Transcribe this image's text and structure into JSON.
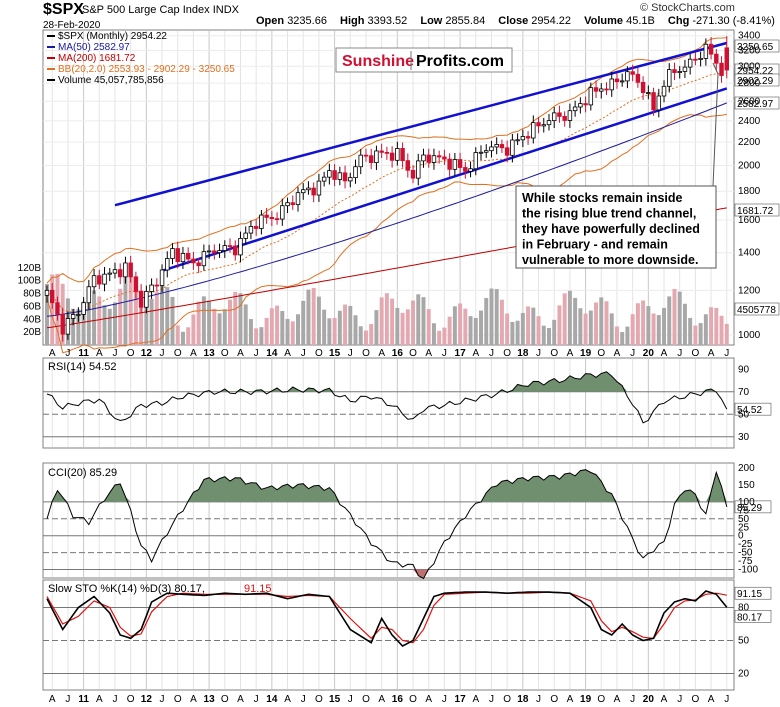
{
  "header": {
    "symbol": "$SPX",
    "name": "S&P 500 Large Cap Index",
    "index_tag": "INDX",
    "date": "28-Feb-2020",
    "open_label": "Open",
    "open": "3235.66",
    "high_label": "High",
    "high": "3393.52",
    "low_label": "Low",
    "low": "2855.84",
    "close_label": "Close",
    "close": "2954.22",
    "volume_label": "Volume",
    "volume": "45.1B",
    "chg_label": "Chg",
    "chg": "-271.30 (-8.41%)",
    "credit": "© StockCharts.com"
  },
  "legend": {
    "price": "$SPX (Monthly) 2954.22",
    "ma50": "MA(50) 2582.97",
    "ma200": "MA(200) 1681.72",
    "bb": "BB(20,2.0) 2553.93 - 2902.29 - 3250.65",
    "volume": "Volume 45,057,785,856"
  },
  "watermark": {
    "part1": "Sunshine",
    "part2": "Profits.com"
  },
  "annotation": {
    "lines": [
      "While stocks remain inside",
      "the rising blue trend channel,",
      "they have powerfully declined",
      "in February - and remain",
      "vulnerable to more downside."
    ]
  },
  "colors": {
    "up": "#000000",
    "down": "#d01030",
    "ma50": "#1a1aa0",
    "ma200": "#c00000",
    "bb": "#e07020",
    "channel": "#1010d0",
    "vol_up": "#a8a8a8",
    "vol_down": "#e4a8b0",
    "fill": "#6f8f6f"
  },
  "price_labels": {
    "bb_upper": "3250.65",
    "close": "2954.22",
    "bb_mid": "2902.29",
    "bb_lower": "2553.93",
    "ma50": "2582.97",
    "ma200": "1681.72",
    "volume": "4505778"
  },
  "rsi": {
    "label": "RSI(14) 54.52",
    "value_label": "54.52"
  },
  "cci": {
    "label": "CCI(20) 85.29",
    "value_label": "85.29"
  },
  "sto": {
    "label_k": "Slow STO %K(14) %D(3) 80.17,",
    "label_d": "91.15",
    "k_label": "80.17",
    "d_label": "91.15"
  },
  "chart_data": [
    {
      "type": "candlestick",
      "title": "$SPX S&P 500 Large Cap Index (Monthly)",
      "x_axis_labels": [
        "A",
        "J",
        "O",
        "11",
        "A",
        "J",
        "O",
        "12",
        "A",
        "J",
        "O",
        "13",
        "A",
        "J",
        "O",
        "14",
        "A",
        "J",
        "O",
        "15",
        "A",
        "J",
        "O",
        "16",
        "A",
        "J",
        "O",
        "17",
        "A",
        "J",
        "O",
        "18",
        "A",
        "J",
        "O",
        "19",
        "A",
        "J",
        "O",
        "20"
      ],
      "y_scale": "log",
      "y_ticks": [
        1000,
        1200,
        1400,
        1600,
        1800,
        2000,
        2200,
        2400,
        2600,
        2800,
        3000,
        3200,
        3400
      ],
      "volume_ticks": [
        "20B",
        "40B",
        "60B",
        "80B",
        "100B",
        "120B"
      ],
      "ohlc_anchor_closes": {
        "x": [
          0,
          3,
          6,
          9,
          12,
          15,
          18,
          21,
          24,
          28,
          32,
          36,
          40,
          44,
          48,
          52,
          54,
          57,
          60,
          64,
          67,
          70,
          72,
          76,
          80,
          84,
          88,
          92,
          96,
          100,
          104,
          106,
          108,
          111,
          114,
          116,
          118,
          120,
          123,
          126,
          129
        ],
        "close": [
          1186,
          1030,
          1100,
          1257,
          1280,
          1320,
          1140,
          1250,
          1408,
          1340,
          1420,
          1426,
          1590,
          1630,
          1780,
          1840,
          1960,
          1870,
          2058,
          2100,
          2095,
          1920,
          2080,
          2045,
          1960,
          2160,
          2140,
          2290,
          2420,
          2470,
          2680,
          2750,
          2780,
          2920,
          2760,
          2510,
          2820,
          2940,
          3030,
          3230,
          2954
        ]
      },
      "latest_bar": {
        "open": 3235.66,
        "high": 3393.52,
        "low": 2855.84,
        "close": 2954.22
      },
      "bb_upper_last": 3250.65,
      "bb_mid_last": 2902.29,
      "bb_lower_last": 2553.93,
      "ma50_last": 2582.97,
      "ma200_last": 1681.72,
      "trend_channel": {
        "upper": [
          [
            13,
            1700
          ],
          [
            130,
            3300
          ]
        ],
        "lower": [
          [
            22,
            1300
          ],
          [
            130,
            2740
          ]
        ]
      },
      "annotation": "While stocks remain inside the rising blue trend channel, they have powerfully declined in February - and remain vulnerable to more downside."
    },
    {
      "type": "line",
      "title": "RSI(14) 54.52",
      "y_ticks": [
        30,
        50,
        70,
        90
      ],
      "reference_lines": [
        30,
        70
      ],
      "last": 54.52,
      "x": [
        0,
        3,
        6,
        10,
        14,
        18,
        22,
        26,
        32,
        40,
        48,
        54,
        58,
        62,
        66,
        70,
        72,
        76,
        80,
        86,
        92,
        98,
        104,
        108,
        112,
        114,
        118,
        122,
        126,
        128,
        130
      ],
      "values": [
        68,
        56,
        60,
        63,
        42,
        58,
        60,
        66,
        70,
        70,
        72,
        71,
        62,
        66,
        58,
        44,
        55,
        58,
        62,
        68,
        77,
        80,
        85,
        86,
        60,
        42,
        62,
        66,
        70,
        72,
        54.52
      ]
    },
    {
      "type": "line",
      "title": "CCI(20) 85.29",
      "y_ticks": [
        -100,
        -75,
        -50,
        -25,
        0,
        25,
        50,
        75,
        100,
        150,
        200
      ],
      "reference_lines": [
        -100,
        100
      ],
      "last": 85.29,
      "x": [
        0,
        2,
        5,
        8,
        11,
        14,
        16,
        18,
        20,
        23,
        26,
        30,
        36,
        42,
        48,
        54,
        58,
        62,
        66,
        70,
        72,
        76,
        80,
        86,
        92,
        98,
        104,
        108,
        112,
        114,
        116,
        118,
        120,
        122,
        124,
        126,
        128,
        130
      ],
      "values": [
        50,
        140,
        60,
        40,
        110,
        160,
        70,
        -30,
        -70,
        10,
        80,
        165,
        170,
        140,
        150,
        140,
        60,
        -20,
        -80,
        -90,
        -130,
        -20,
        60,
        155,
        170,
        175,
        195,
        120,
        -10,
        -70,
        -40,
        -20,
        90,
        140,
        120,
        60,
        195,
        85.29
      ]
    },
    {
      "type": "line",
      "title": "Slow STO %K(14) %D(3)",
      "y_ticks": [
        20,
        50,
        80
      ],
      "reference_lines": [
        20,
        80
      ],
      "series": [
        {
          "name": "%K",
          "last": 80.17,
          "x": [
            0,
            3,
            6,
            9,
            12,
            14,
            16,
            18,
            20,
            23,
            26,
            30,
            34,
            38,
            42,
            46,
            50,
            54,
            58,
            62,
            64,
            66,
            68,
            70,
            72,
            74,
            76,
            80,
            84,
            88,
            92,
            96,
            100,
            104,
            106,
            108,
            110,
            112,
            114,
            116,
            118,
            120,
            122,
            124,
            126,
            128,
            130
          ],
          "values": [
            88,
            60,
            80,
            90,
            75,
            55,
            52,
            60,
            85,
            93,
            92,
            91,
            93,
            92,
            93,
            88,
            92,
            90,
            60,
            48,
            70,
            55,
            45,
            50,
            70,
            90,
            93,
            94,
            94,
            93,
            94,
            94,
            93,
            80,
            60,
            55,
            65,
            55,
            50,
            52,
            75,
            85,
            88,
            86,
            95,
            92,
            80.17
          ]
        },
        {
          "name": "%D",
          "last": 91.15,
          "x": [
            0,
            3,
            6,
            9,
            12,
            14,
            16,
            18,
            20,
            23,
            26,
            30,
            34,
            38,
            42,
            46,
            50,
            54,
            58,
            62,
            64,
            66,
            68,
            70,
            72,
            74,
            76,
            80,
            84,
            88,
            92,
            96,
            100,
            104,
            106,
            108,
            110,
            112,
            114,
            116,
            118,
            120,
            122,
            124,
            126,
            128,
            130
          ],
          "values": [
            90,
            65,
            72,
            86,
            80,
            62,
            54,
            56,
            76,
            90,
            93,
            92,
            92,
            92,
            92,
            90,
            91,
            90,
            70,
            52,
            62,
            60,
            50,
            48,
            60,
            82,
            92,
            93,
            94,
            93,
            93,
            94,
            93,
            86,
            68,
            58,
            62,
            58,
            53,
            52,
            65,
            80,
            86,
            87,
            92,
            93,
            91.15
          ]
        }
      ]
    }
  ]
}
